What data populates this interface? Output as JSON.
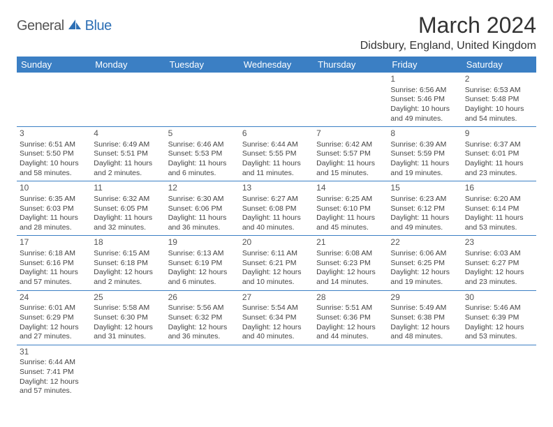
{
  "logo": {
    "text1": "General",
    "text2": "Blue"
  },
  "title": "March 2024",
  "location": "Didsbury, England, United Kingdom",
  "colors": {
    "header_bg": "#3b7fc4",
    "header_text": "#ffffff",
    "divider": "#3b7fc4",
    "logo_blue": "#2d6fb5",
    "body_text": "#444444"
  },
  "dayNames": [
    "Sunday",
    "Monday",
    "Tuesday",
    "Wednesday",
    "Thursday",
    "Friday",
    "Saturday"
  ],
  "startOffset": 5,
  "days": [
    {
      "n": 1,
      "sr": "6:56 AM",
      "ss": "5:46 PM",
      "dl": "10 hours and 49 minutes."
    },
    {
      "n": 2,
      "sr": "6:53 AM",
      "ss": "5:48 PM",
      "dl": "10 hours and 54 minutes."
    },
    {
      "n": 3,
      "sr": "6:51 AM",
      "ss": "5:50 PM",
      "dl": "10 hours and 58 minutes."
    },
    {
      "n": 4,
      "sr": "6:49 AM",
      "ss": "5:51 PM",
      "dl": "11 hours and 2 minutes."
    },
    {
      "n": 5,
      "sr": "6:46 AM",
      "ss": "5:53 PM",
      "dl": "11 hours and 6 minutes."
    },
    {
      "n": 6,
      "sr": "6:44 AM",
      "ss": "5:55 PM",
      "dl": "11 hours and 11 minutes."
    },
    {
      "n": 7,
      "sr": "6:42 AM",
      "ss": "5:57 PM",
      "dl": "11 hours and 15 minutes."
    },
    {
      "n": 8,
      "sr": "6:39 AM",
      "ss": "5:59 PM",
      "dl": "11 hours and 19 minutes."
    },
    {
      "n": 9,
      "sr": "6:37 AM",
      "ss": "6:01 PM",
      "dl": "11 hours and 23 minutes."
    },
    {
      "n": 10,
      "sr": "6:35 AM",
      "ss": "6:03 PM",
      "dl": "11 hours and 28 minutes."
    },
    {
      "n": 11,
      "sr": "6:32 AM",
      "ss": "6:05 PM",
      "dl": "11 hours and 32 minutes."
    },
    {
      "n": 12,
      "sr": "6:30 AM",
      "ss": "6:06 PM",
      "dl": "11 hours and 36 minutes."
    },
    {
      "n": 13,
      "sr": "6:27 AM",
      "ss": "6:08 PM",
      "dl": "11 hours and 40 minutes."
    },
    {
      "n": 14,
      "sr": "6:25 AM",
      "ss": "6:10 PM",
      "dl": "11 hours and 45 minutes."
    },
    {
      "n": 15,
      "sr": "6:23 AM",
      "ss": "6:12 PM",
      "dl": "11 hours and 49 minutes."
    },
    {
      "n": 16,
      "sr": "6:20 AM",
      "ss": "6:14 PM",
      "dl": "11 hours and 53 minutes."
    },
    {
      "n": 17,
      "sr": "6:18 AM",
      "ss": "6:16 PM",
      "dl": "11 hours and 57 minutes."
    },
    {
      "n": 18,
      "sr": "6:15 AM",
      "ss": "6:18 PM",
      "dl": "12 hours and 2 minutes."
    },
    {
      "n": 19,
      "sr": "6:13 AM",
      "ss": "6:19 PM",
      "dl": "12 hours and 6 minutes."
    },
    {
      "n": 20,
      "sr": "6:11 AM",
      "ss": "6:21 PM",
      "dl": "12 hours and 10 minutes."
    },
    {
      "n": 21,
      "sr": "6:08 AM",
      "ss": "6:23 PM",
      "dl": "12 hours and 14 minutes."
    },
    {
      "n": 22,
      "sr": "6:06 AM",
      "ss": "6:25 PM",
      "dl": "12 hours and 19 minutes."
    },
    {
      "n": 23,
      "sr": "6:03 AM",
      "ss": "6:27 PM",
      "dl": "12 hours and 23 minutes."
    },
    {
      "n": 24,
      "sr": "6:01 AM",
      "ss": "6:29 PM",
      "dl": "12 hours and 27 minutes."
    },
    {
      "n": 25,
      "sr": "5:58 AM",
      "ss": "6:30 PM",
      "dl": "12 hours and 31 minutes."
    },
    {
      "n": 26,
      "sr": "5:56 AM",
      "ss": "6:32 PM",
      "dl": "12 hours and 36 minutes."
    },
    {
      "n": 27,
      "sr": "5:54 AM",
      "ss": "6:34 PM",
      "dl": "12 hours and 40 minutes."
    },
    {
      "n": 28,
      "sr": "5:51 AM",
      "ss": "6:36 PM",
      "dl": "12 hours and 44 minutes."
    },
    {
      "n": 29,
      "sr": "5:49 AM",
      "ss": "6:38 PM",
      "dl": "12 hours and 48 minutes."
    },
    {
      "n": 30,
      "sr": "5:46 AM",
      "ss": "6:39 PM",
      "dl": "12 hours and 53 minutes."
    },
    {
      "n": 31,
      "sr": "6:44 AM",
      "ss": "7:41 PM",
      "dl": "12 hours and 57 minutes."
    }
  ],
  "labels": {
    "sunrise": "Sunrise:",
    "sunset": "Sunset:",
    "daylight": "Daylight:"
  }
}
